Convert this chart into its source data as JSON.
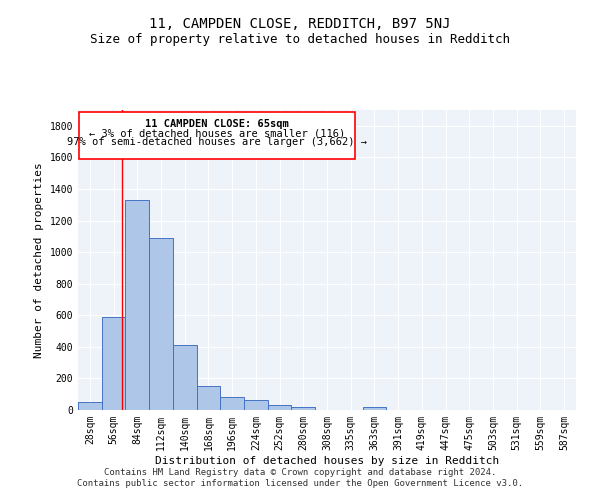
{
  "title_line1": "11, CAMPDEN CLOSE, REDDITCH, B97 5NJ",
  "title_line2": "Size of property relative to detached houses in Redditch",
  "xlabel": "Distribution of detached houses by size in Redditch",
  "ylabel": "Number of detached properties",
  "footer": "Contains HM Land Registry data © Crown copyright and database right 2024.\nContains public sector information licensed under the Open Government Licence v3.0.",
  "bin_labels": [
    "28sqm",
    "56sqm",
    "84sqm",
    "112sqm",
    "140sqm",
    "168sqm",
    "196sqm",
    "224sqm",
    "252sqm",
    "280sqm",
    "308sqm",
    "335sqm",
    "363sqm",
    "391sqm",
    "419sqm",
    "447sqm",
    "475sqm",
    "503sqm",
    "531sqm",
    "559sqm",
    "587sqm"
  ],
  "bar_values": [
    50,
    590,
    1330,
    1090,
    410,
    155,
    85,
    65,
    30,
    18,
    0,
    0,
    18,
    0,
    0,
    0,
    0,
    0,
    0,
    0,
    0
  ],
  "bar_color": "#aec6e8",
  "bar_edge_color": "#4472c4",
  "ylim": [
    0,
    1900
  ],
  "yticks": [
    0,
    200,
    400,
    600,
    800,
    1000,
    1200,
    1400,
    1600,
    1800
  ],
  "property_line_x": 1.37,
  "annotation": {
    "text_line1": "11 CAMPDEN CLOSE: 65sqm",
    "text_line2": "← 3% of detached houses are smaller (116)",
    "text_line3": "97% of semi-detached houses are larger (3,662) →"
  },
  "background_color": "#eef2f9",
  "grid_color": "#ffffff",
  "title_fontsize": 10,
  "subtitle_fontsize": 9,
  "axis_label_fontsize": 8,
  "tick_fontsize": 7,
  "annotation_fontsize": 7.5,
  "footer_fontsize": 6.5
}
